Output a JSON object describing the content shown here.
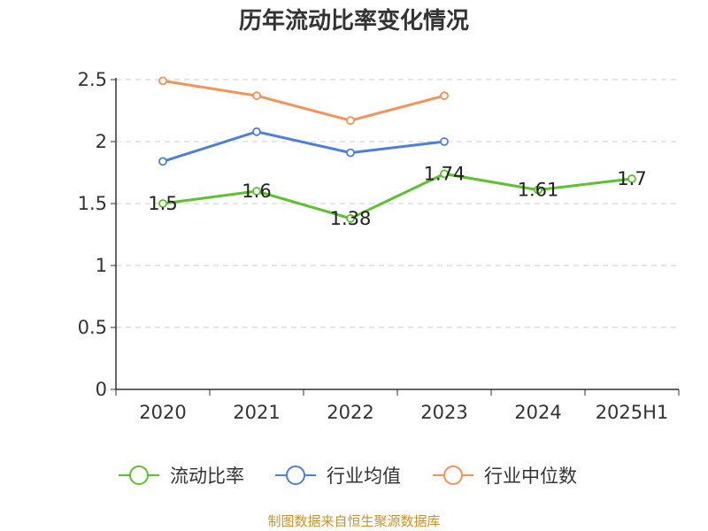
{
  "chart_data": {
    "type": "line",
    "title": "历年流动比率变化情况",
    "categories": [
      "2020",
      "2021",
      "2022",
      "2023",
      "2024",
      "2025H1"
    ],
    "yticks": [
      "0",
      "0.5",
      "1",
      "1.5",
      "2",
      "2.5"
    ],
    "ylim": [
      0,
      2.5
    ],
    "grid": "horizontal-dashed",
    "legend_position": "bottom",
    "series": [
      {
        "name": "流动比率",
        "color": "#5cc02f",
        "values": [
          1.5,
          1.6,
          1.38,
          1.74,
          1.61,
          1.7
        ],
        "labels": [
          "1.5",
          "1.6",
          "1.38",
          "1.74",
          "1.61",
          "1.7"
        ],
        "show_labels": true
      },
      {
        "name": "行业均值",
        "color": "#4f7fd8",
        "values": [
          1.84,
          2.08,
          1.91,
          2.0,
          null,
          null
        ],
        "show_labels": false
      },
      {
        "name": "行业中位数",
        "color": "#f59258",
        "values": [
          2.49,
          2.37,
          2.17,
          2.37,
          null,
          null
        ],
        "show_labels": false
      }
    ]
  },
  "footer": {
    "source": "制图数据来自恒生聚源数据库"
  }
}
